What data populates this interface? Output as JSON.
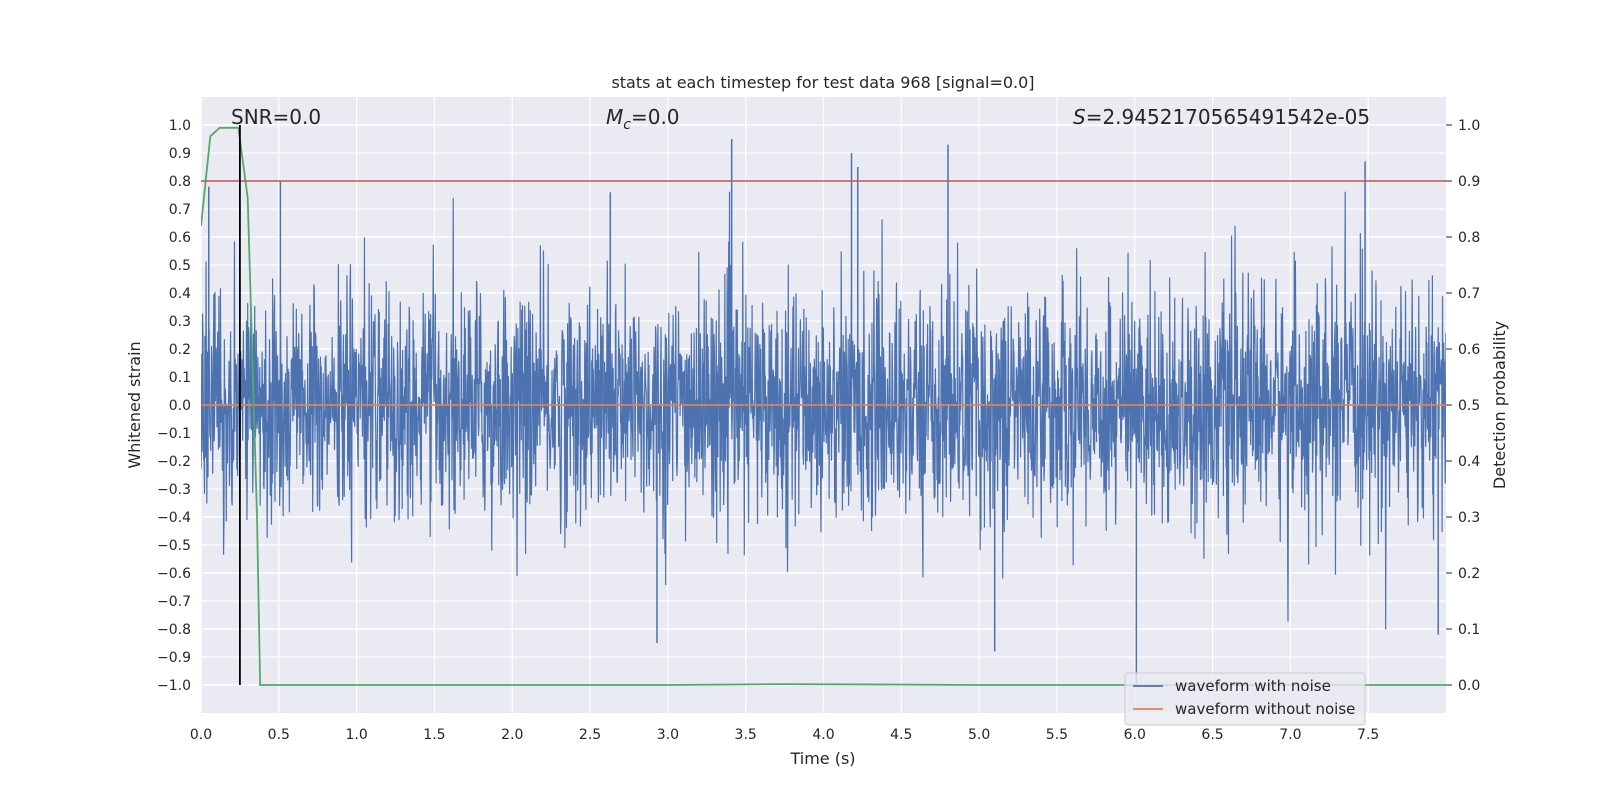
{
  "chart_data": {
    "type": "line",
    "title": "stats at each timestep for test data 968 [signal=0.0]",
    "xlabel": "Time (s)",
    "ylabel": "Whitened strain",
    "y2label": "Detection probability",
    "xlim": [
      0.0,
      8.0
    ],
    "ylim": [
      -1.1,
      1.1
    ],
    "y2lim": [
      -0.05,
      1.05
    ],
    "xticks": [
      "0.0",
      "0.5",
      "1.0",
      "1.5",
      "2.0",
      "2.5",
      "3.0",
      "3.5",
      "4.0",
      "4.5",
      "5.0",
      "5.5",
      "6.0",
      "6.5",
      "7.0",
      "7.5"
    ],
    "yticks": [
      "1.0",
      "0.9",
      "0.8",
      "0.7",
      "0.6",
      "0.5",
      "0.4",
      "0.3",
      "0.2",
      "0.1",
      "0.0",
      "-0.1",
      "-0.2",
      "-0.3",
      "-0.4",
      "-0.5",
      "-0.6",
      "-0.7",
      "-0.8",
      "-0.9",
      "-1.0"
    ],
    "y2ticks": [
      "1.0",
      "0.9",
      "0.8",
      "0.7",
      "0.6",
      "0.5",
      "0.4",
      "0.3",
      "0.2",
      "0.1",
      "0.0"
    ],
    "annotations": {
      "snr_text": "SNR=0.0",
      "mc_symbol": "M",
      "mc_sub": "c",
      "mc_text": "=0.0",
      "s_symbol": "S",
      "s_text": "=2.9452170565491542e-05"
    },
    "threshold": {
      "value": 0.9,
      "axis": "right",
      "color": "#c44e52"
    },
    "marker_line": {
      "x": 0.25,
      "y_from": -1.0,
      "y_to": 1.0,
      "color": "#000000"
    },
    "series": [
      {
        "name": "waveform with noise",
        "color": "#4c72b0",
        "axis": "left",
        "kind": "noise",
        "envelope_peaks": [
          {
            "x": 0.05,
            "y": 0.78
          },
          {
            "x": 0.51,
            "y": 0.8
          },
          {
            "x": 2.63,
            "y": 0.76
          },
          {
            "x": 3.41,
            "y": 0.95
          },
          {
            "x": 4.18,
            "y": 0.9
          },
          {
            "x": 4.22,
            "y": 0.85
          },
          {
            "x": 4.8,
            "y": 0.93
          },
          {
            "x": 7.48,
            "y": 0.87
          },
          {
            "x": 6.01,
            "y": -1.0
          },
          {
            "x": 2.93,
            "y": -0.85
          },
          {
            "x": 5.1,
            "y": -0.88
          },
          {
            "x": 7.95,
            "y": -0.82
          }
        ]
      },
      {
        "name": "waveform without noise",
        "color": "#dd8452",
        "axis": "left",
        "kind": "constant",
        "value": 0.0
      },
      {
        "name": "detection probability",
        "color": "#55a868",
        "axis": "right",
        "kind": "line",
        "x": [
          0.0,
          0.06,
          0.12,
          0.18,
          0.24,
          0.3,
          0.36,
          0.38,
          1.0,
          3.0,
          3.7,
          4.3,
          5.0,
          6.0,
          7.0,
          8.0
        ],
        "y": [
          0.82,
          0.98,
          0.995,
          0.995,
          0.995,
          0.87,
          0.3,
          0.0,
          0.0,
          0.0,
          0.0015,
          0.001,
          0.0,
          0.0,
          0.0,
          0.0
        ]
      }
    ],
    "legend": {
      "position": "lower-right",
      "entries": [
        "waveform with noise",
        "waveform without noise"
      ]
    }
  }
}
